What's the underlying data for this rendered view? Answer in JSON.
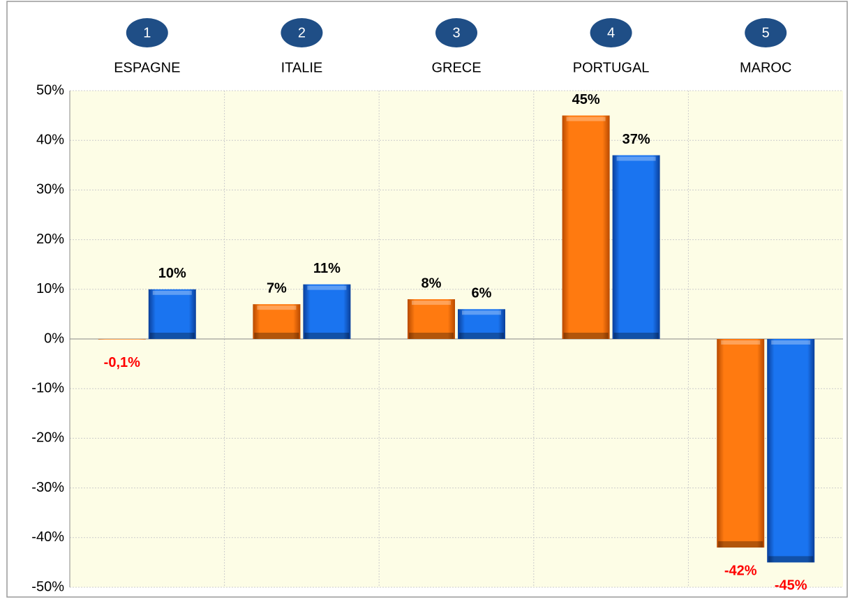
{
  "chart_data": {
    "type": "bar",
    "categories": [
      "ESPAGNE",
      "ITALIE",
      "GRECE",
      "PORTUGAL",
      "MAROC"
    ],
    "rank_labels": [
      "1",
      "2",
      "3",
      "4",
      "5"
    ],
    "series": [
      {
        "color": "#ff6d00",
        "values": [
          -0.1,
          7,
          8,
          45,
          -42
        ],
        "value_labels": [
          "-0,1%",
          "7%",
          "8%",
          "45%",
          "-42%"
        ]
      },
      {
        "color": "#0a64e6",
        "values": [
          10,
          11,
          6,
          37,
          -45
        ],
        "value_labels": [
          "10%",
          "11%",
          "6%",
          "37%",
          "-45%"
        ]
      }
    ],
    "negative_label_color": "#ff0000",
    "ylim": [
      -50,
      50
    ],
    "yticks": [
      {
        "value": -50,
        "label": "-50%"
      },
      {
        "value": -40,
        "label": "-40%"
      },
      {
        "value": -30,
        "label": "-30%"
      },
      {
        "value": -20,
        "label": "-20%"
      },
      {
        "value": -10,
        "label": "-10%"
      },
      {
        "value": 0,
        "label": "0%"
      },
      {
        "value": 10,
        "label": "10%"
      },
      {
        "value": 20,
        "label": "20%"
      },
      {
        "value": 30,
        "label": "30%"
      },
      {
        "value": 40,
        "label": "40%"
      },
      {
        "value": 50,
        "label": "50%"
      }
    ],
    "grid": true
  }
}
